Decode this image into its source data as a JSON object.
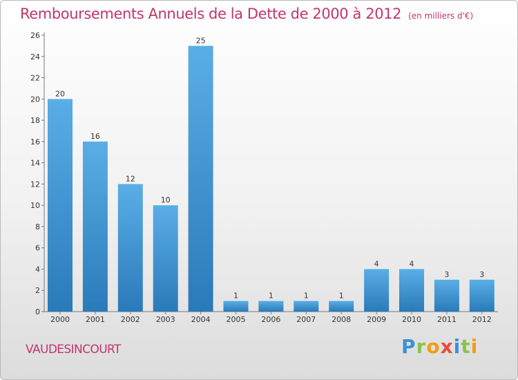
{
  "chart_data": {
    "type": "bar",
    "title": "Remboursements Annuels de la Dette de 2000 à 2012",
    "unit_note": "(en milliers d'€)",
    "xlabel": "",
    "ylabel": "",
    "categories": [
      "2000",
      "2001",
      "2002",
      "2003",
      "2004",
      "2005",
      "2006",
      "2007",
      "2008",
      "2009",
      "2010",
      "2011",
      "2012"
    ],
    "values": [
      20,
      16,
      12,
      10,
      25,
      1,
      1,
      1,
      1,
      4,
      4,
      3,
      3
    ],
    "ylim": [
      0,
      26
    ],
    "yticks": [
      0,
      2,
      4,
      6,
      8,
      10,
      12,
      14,
      16,
      18,
      20,
      22,
      24,
      26
    ],
    "grid": false,
    "bar_color_top": "#5aaee6",
    "bar_color_bottom": "#2a7ab9",
    "label_color": "#c0366c"
  },
  "footer": {
    "town": "VAUDESINCOURT",
    "logo_letters": [
      "P",
      "r",
      "o",
      "x",
      "i",
      "t",
      "i"
    ],
    "logo_colors": [
      "#3c8fd9",
      "#8bc34a",
      "#f39c12",
      "#e74c3c",
      "#3c8fd9",
      "#8bc34a",
      "#f39c12"
    ]
  }
}
